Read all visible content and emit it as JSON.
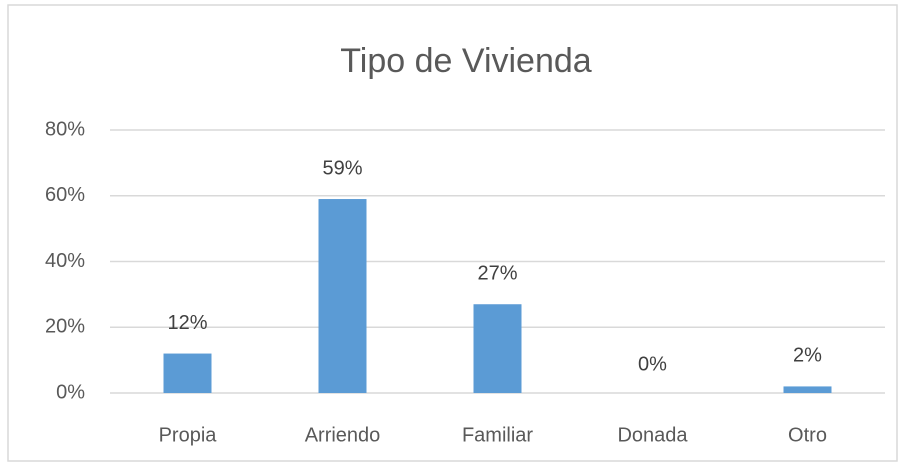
{
  "chart_data": {
    "type": "bar",
    "title": "Tipo de Vivienda",
    "categories": [
      "Propia",
      "Arriendo",
      "Familiar",
      "Donada",
      "Otro"
    ],
    "values": [
      12,
      59,
      27,
      0,
      2
    ],
    "value_labels": [
      "12%",
      "59%",
      "27%",
      "0%",
      "2%"
    ],
    "color": "#5b9bd5",
    "ylim": [
      0,
      80
    ],
    "yticks": [
      {
        "value": 0,
        "label": "0%"
      },
      {
        "value": 20,
        "label": "20%"
      },
      {
        "value": 40,
        "label": "40%"
      },
      {
        "value": 60,
        "label": "60%"
      },
      {
        "value": 80,
        "label": "80%"
      }
    ],
    "grid": true
  }
}
